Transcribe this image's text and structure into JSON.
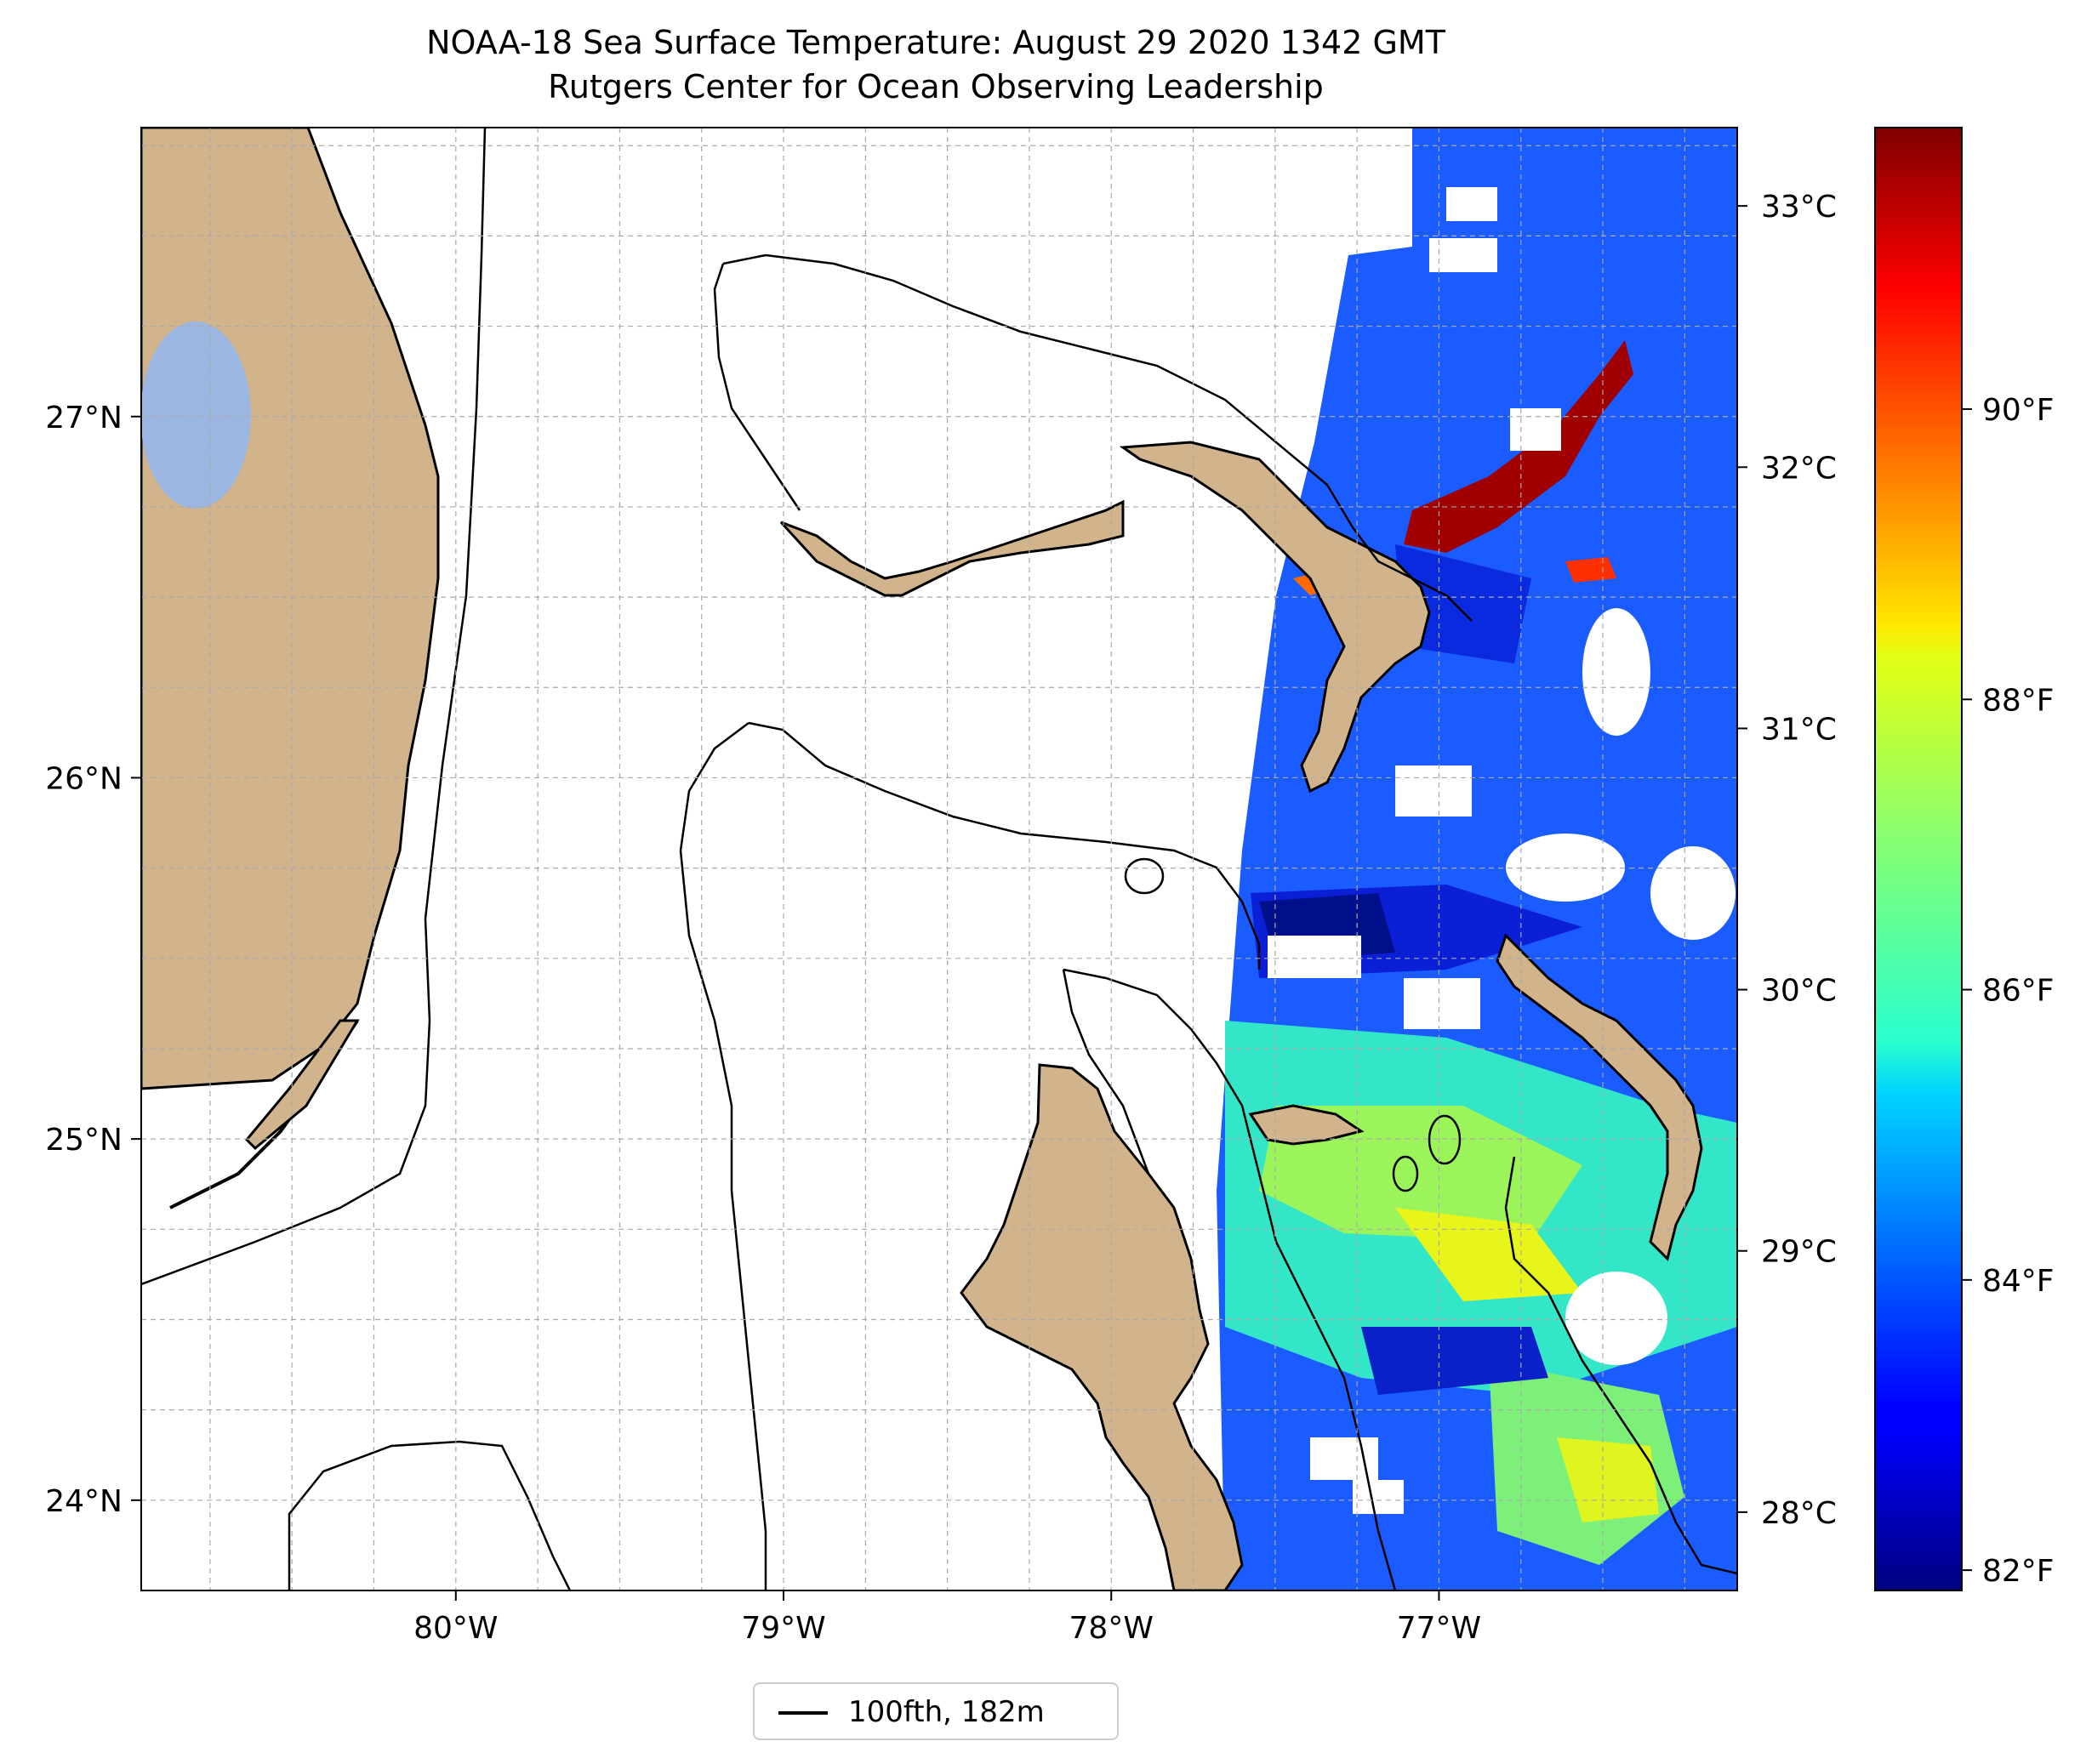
{
  "title": {
    "line1": "NOAA-18 Sea Surface Temperature: August 29 2020 1342 GMT",
    "line2": "Rutgers Center for Ocean Observing Leadership"
  },
  "map": {
    "lon_range": [
      -80.96,
      -76.09
    ],
    "lat_range": [
      23.75,
      27.8
    ],
    "lon_ticks": [
      {
        "lon": -80,
        "label": "80°W"
      },
      {
        "lon": -79,
        "label": "79°W"
      },
      {
        "lon": -78,
        "label": "78°W"
      },
      {
        "lon": -77,
        "label": "77°W"
      }
    ],
    "lat_ticks": [
      {
        "lat": 27,
        "label": "27°N"
      },
      {
        "lat": 26,
        "label": "26°N"
      },
      {
        "lat": 25,
        "label": "25°N"
      },
      {
        "lat": 24,
        "label": "24°N"
      }
    ],
    "gridlines": true,
    "land_color": "#d2b48c",
    "lake_color": "#9bb6e0"
  },
  "colorbar": {
    "celsius_range": [
      27.7,
      33.3
    ],
    "celsius_ticks": [
      {
        "value": 33,
        "label": "33°C"
      },
      {
        "value": 32,
        "label": "32°C"
      },
      {
        "value": 31,
        "label": "31°C"
      },
      {
        "value": 30,
        "label": "30°C"
      },
      {
        "value": 29,
        "label": "29°C"
      },
      {
        "value": 28,
        "label": "28°C"
      }
    ],
    "fahrenheit_ticks": [
      {
        "value": 90,
        "label": "90°F"
      },
      {
        "value": 88,
        "label": "88°F"
      },
      {
        "value": 86,
        "label": "86°F"
      },
      {
        "value": 84,
        "label": "84°F"
      },
      {
        "value": 82,
        "label": "82°F"
      }
    ],
    "colormap": "jet"
  },
  "legend": {
    "label": "100fth, 182m",
    "line_color": "#000000"
  }
}
